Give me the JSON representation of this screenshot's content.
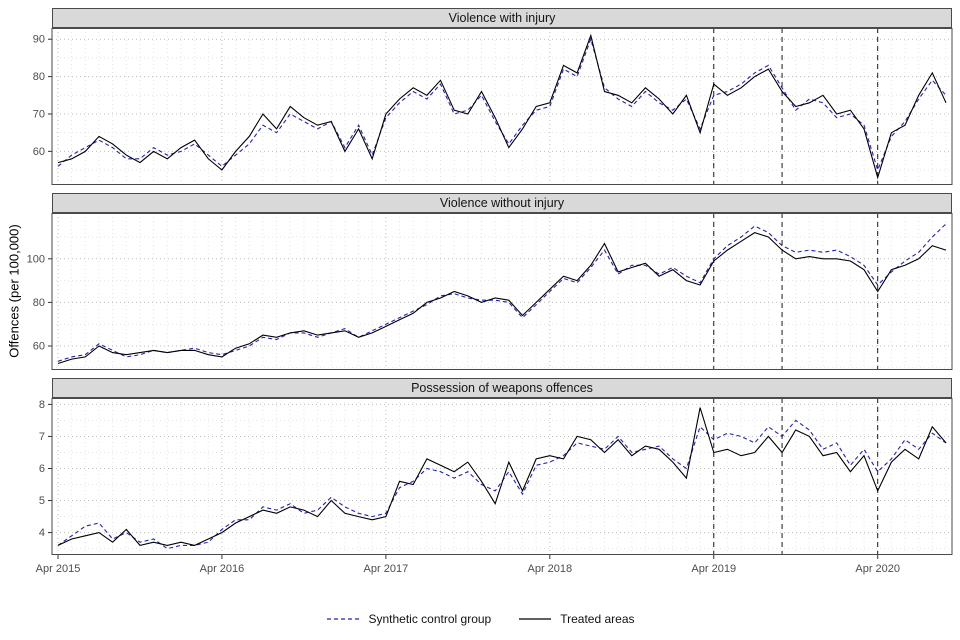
{
  "figure": {
    "y_axis_label": "Offences (per 100,000)"
  },
  "chart_data": {
    "type": "line",
    "x_unit": "month",
    "x_start_month": "Apr 2015",
    "x_end_month": "Sep 2020",
    "months_n": 66,
    "x_tick_labels": [
      "Apr 2015",
      "Apr 2016",
      "Apr 2017",
      "Apr 2018",
      "Apr 2019",
      "Apr 2020"
    ],
    "x_major_month_indexes": [
      0,
      12,
      24,
      36,
      48,
      60
    ],
    "grid": "dotted",
    "legend_position": "bottom",
    "legend": [
      {
        "name": "synthetic-control-group",
        "label": "Synthetic control group",
        "color": "#2222bb",
        "dash": "4,3"
      },
      {
        "name": "treated-areas",
        "label": "Treated areas",
        "color": "#000000",
        "dash": ""
      }
    ],
    "intervention_lines": [
      {
        "label": "Apr 2019",
        "month_index": 48
      },
      {
        "label": "Sep 2019",
        "month_index": 53
      },
      {
        "label": "Apr 2020",
        "month_index": 60
      }
    ],
    "panels": [
      {
        "title": "Violence with injury",
        "ylim": [
          51,
          93
        ],
        "y_ticks": [
          60,
          70,
          80,
          90
        ],
        "series": [
          {
            "name": "Synthetic control group",
            "values": [
              56,
              59,
              61,
              63,
              61,
              58,
              58,
              61,
              59,
              60,
              62,
              59,
              56,
              59,
              62,
              67,
              65,
              70,
              68,
              66,
              68,
              61,
              67,
              59,
              69,
              73,
              76,
              74,
              78,
              70,
              71,
              75,
              68,
              62,
              67,
              71,
              72,
              82,
              80,
              90,
              77,
              74,
              72,
              76,
              73,
              71,
              74,
              66,
              75,
              76,
              78,
              81,
              83,
              77,
              71,
              74,
              73,
              69,
              70,
              67,
              55,
              64,
              68,
              74,
              79,
              75
            ]
          },
          {
            "name": "Treated areas",
            "values": [
              57,
              58,
              60,
              64,
              62,
              59,
              57,
              60,
              58,
              61,
              63,
              58,
              55,
              60,
              64,
              70,
              66,
              72,
              69,
              67,
              68,
              60,
              66,
              58,
              70,
              74,
              77,
              75,
              79,
              71,
              70,
              76,
              69,
              61,
              66,
              72,
              73,
              83,
              81,
              91,
              76,
              75,
              73,
              77,
              74,
              70,
              75,
              65,
              78,
              75,
              77,
              80,
              82,
              76,
              72,
              73,
              75,
              70,
              71,
              66,
              53,
              65,
              67,
              75,
              81,
              73
            ]
          }
        ]
      },
      {
        "title": "Violence without injury",
        "ylim": [
          49,
          121
        ],
        "y_ticks": [
          60,
          80,
          100
        ],
        "series": [
          {
            "name": "Synthetic control group",
            "values": [
              53,
              55,
              56,
              61,
              58,
              55,
              56,
              58,
              57,
              58,
              59,
              57,
              56,
              58,
              60,
              64,
              63,
              66,
              66,
              64,
              66,
              68,
              64,
              67,
              70,
              73,
              76,
              79,
              83,
              84,
              82,
              81,
              81,
              80,
              73,
              79,
              85,
              91,
              89,
              96,
              104,
              93,
              97,
              97,
              93,
              96,
              92,
              89,
              100,
              106,
              110,
              115,
              112,
              106,
              103,
              104,
              103,
              104,
              101,
              97,
              88,
              94,
              99,
              103,
              110,
              116
            ]
          },
          {
            "name": "Treated areas",
            "values": [
              52,
              54,
              55,
              60,
              57,
              56,
              57,
              58,
              57,
              58,
              58,
              56,
              55,
              59,
              61,
              65,
              64,
              66,
              67,
              65,
              66,
              67,
              64,
              66,
              69,
              72,
              75,
              80,
              82,
              85,
              83,
              80,
              82,
              81,
              74,
              80,
              86,
              92,
              90,
              97,
              107,
              94,
              96,
              98,
              92,
              95,
              90,
              88,
              99,
              104,
              108,
              112,
              110,
              104,
              100,
              101,
              100,
              100,
              99,
              95,
              85,
              95,
              97,
              100,
              106,
              104
            ]
          }
        ]
      },
      {
        "title": "Possession of weapons offences",
        "ylim": [
          3.3,
          8.2
        ],
        "y_ticks": [
          4,
          5,
          6,
          7,
          8
        ],
        "series": [
          {
            "name": "Synthetic control group",
            "values": [
              3.6,
              3.9,
              4.2,
              4.3,
              3.8,
              4.0,
              3.7,
              3.8,
              3.5,
              3.6,
              3.6,
              3.7,
              4.1,
              4.4,
              4.4,
              4.8,
              4.7,
              4.9,
              4.6,
              4.7,
              5.1,
              4.8,
              4.6,
              4.5,
              4.6,
              5.4,
              5.6,
              6.0,
              5.9,
              5.7,
              5.9,
              5.5,
              5.3,
              5.9,
              5.2,
              6.1,
              6.2,
              6.4,
              6.8,
              6.7,
              6.6,
              7.0,
              6.5,
              6.6,
              6.7,
              6.3,
              6.0,
              7.3,
              6.9,
              7.1,
              7.0,
              6.8,
              7.3,
              7.0,
              7.5,
              7.2,
              6.6,
              6.8,
              6.1,
              6.6,
              5.9,
              6.3,
              6.9,
              6.6,
              7.1,
              6.8
            ]
          },
          {
            "name": "Treated areas",
            "values": [
              3.6,
              3.8,
              3.9,
              4.0,
              3.7,
              4.1,
              3.6,
              3.7,
              3.6,
              3.7,
              3.6,
              3.8,
              4.0,
              4.3,
              4.5,
              4.7,
              4.6,
              4.8,
              4.7,
              4.5,
              5.0,
              4.6,
              4.5,
              4.4,
              4.5,
              5.6,
              5.5,
              6.3,
              6.1,
              5.9,
              6.2,
              5.6,
              4.9,
              6.2,
              5.3,
              6.3,
              6.4,
              6.3,
              7.0,
              6.9,
              6.5,
              6.9,
              6.4,
              6.7,
              6.6,
              6.2,
              5.7,
              7.9,
              6.5,
              6.6,
              6.4,
              6.5,
              7.0,
              6.5,
              7.2,
              7.0,
              6.4,
              6.5,
              5.9,
              6.4,
              5.3,
              6.2,
              6.6,
              6.3,
              7.3,
              6.8
            ]
          }
        ]
      }
    ]
  }
}
